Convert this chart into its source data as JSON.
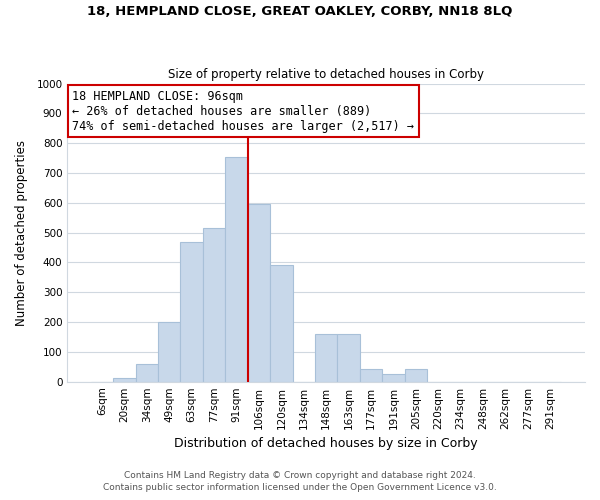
{
  "title1": "18, HEMPLAND CLOSE, GREAT OAKLEY, CORBY, NN18 8LQ",
  "title2": "Size of property relative to detached houses in Corby",
  "xlabel": "Distribution of detached houses by size in Corby",
  "ylabel": "Number of detached properties",
  "bar_labels": [
    "6sqm",
    "20sqm",
    "34sqm",
    "49sqm",
    "63sqm",
    "77sqm",
    "91sqm",
    "106sqm",
    "120sqm",
    "134sqm",
    "148sqm",
    "163sqm",
    "177sqm",
    "191sqm",
    "205sqm",
    "220sqm",
    "234sqm",
    "248sqm",
    "262sqm",
    "277sqm",
    "291sqm"
  ],
  "bar_values": [
    0,
    13,
    60,
    200,
    470,
    515,
    755,
    595,
    390,
    0,
    160,
    160,
    42,
    25,
    44,
    0,
    0,
    0,
    0,
    0,
    0
  ],
  "bar_color": "#c8d8ea",
  "bar_edge_color": "#a8c0d8",
  "vline_color": "#cc0000",
  "annotation_title": "18 HEMPLAND CLOSE: 96sqm",
  "annotation_line1": "← 26% of detached houses are smaller (889)",
  "annotation_line2": "74% of semi-detached houses are larger (2,517) →",
  "annotation_box_color": "white",
  "annotation_box_edge_color": "#cc0000",
  "ylim": [
    0,
    1000
  ],
  "yticks": [
    0,
    100,
    200,
    300,
    400,
    500,
    600,
    700,
    800,
    900,
    1000
  ],
  "footer1": "Contains HM Land Registry data © Crown copyright and database right 2024.",
  "footer2": "Contains public sector information licensed under the Open Government Licence v3.0.",
  "figsize": [
    6.0,
    5.0
  ],
  "dpi": 100,
  "grid_color": "#d0d8e0",
  "title1_fontsize": 9.5,
  "title2_fontsize": 8.5,
  "xlabel_fontsize": 9,
  "ylabel_fontsize": 8.5,
  "tick_fontsize": 7.5,
  "annotation_fontsize": 8.5,
  "footer_fontsize": 6.5
}
